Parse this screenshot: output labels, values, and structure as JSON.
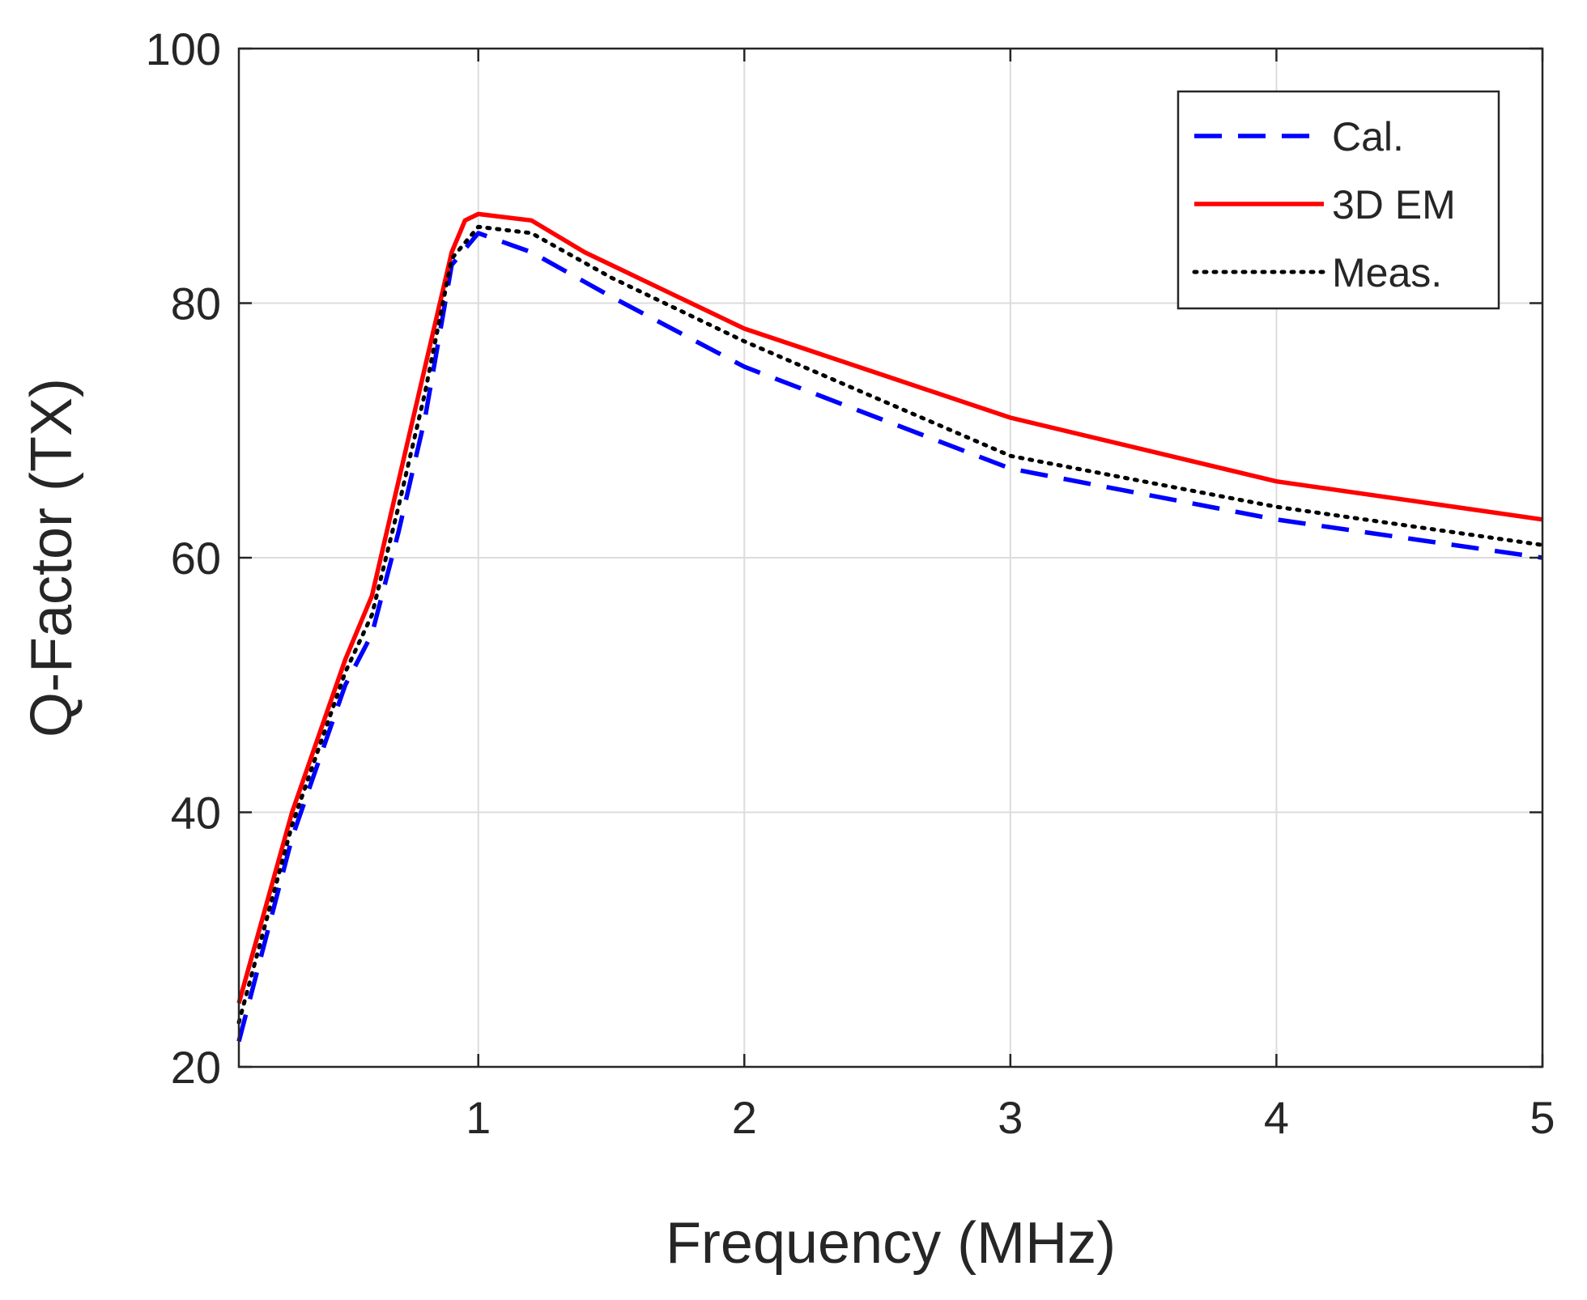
{
  "chart_data": {
    "type": "line",
    "title": "",
    "xlabel": "Frequency (MHz)",
    "ylabel": "Q-Factor (TX)",
    "xlim": [
      0.1,
      5
    ],
    "ylim": [
      20,
      100
    ],
    "xticks": [
      1,
      2,
      3,
      4,
      5
    ],
    "yticks": [
      20,
      40,
      60,
      80,
      100
    ],
    "grid": true,
    "legend_position": "top-right",
    "series": [
      {
        "name": "Cal.",
        "color": "#0000ff",
        "style": "dashed",
        "x": [
          0.1,
          0.3,
          0.5,
          0.6,
          0.7,
          0.8,
          0.9,
          1.0,
          1.2,
          1.5,
          2.0,
          2.5,
          3.0,
          3.5,
          4.0,
          4.5,
          5.0
        ],
        "y": [
          22,
          38,
          50,
          54,
          62,
          71,
          83,
          85.5,
          84,
          80.5,
          75,
          71,
          67,
          65,
          63,
          61.5,
          60
        ]
      },
      {
        "name": "3D EM",
        "color": "#ff0000",
        "style": "solid",
        "x": [
          0.1,
          0.3,
          0.5,
          0.6,
          0.7,
          0.8,
          0.9,
          0.95,
          1.0,
          1.2,
          1.4,
          1.7,
          2.0,
          2.5,
          3.0,
          3.5,
          4.0,
          4.5,
          5.0
        ],
        "y": [
          25,
          40,
          52,
          57,
          66,
          75,
          84,
          86.5,
          87,
          86.5,
          84,
          81,
          78,
          74.5,
          71,
          68.5,
          66,
          64.5,
          63
        ]
      },
      {
        "name": "Meas.",
        "color": "#000000",
        "style": "dotted",
        "x": [
          0.1,
          0.3,
          0.5,
          0.6,
          0.7,
          0.8,
          0.9,
          1.0,
          1.2,
          1.5,
          2.0,
          2.5,
          3.0,
          3.5,
          4.0,
          4.5,
          5.0
        ],
        "y": [
          23.5,
          39,
          51,
          55.5,
          64,
          73,
          83.5,
          86,
          85.5,
          82,
          77,
          72.5,
          68,
          66,
          64,
          62.5,
          61
        ]
      }
    ]
  }
}
